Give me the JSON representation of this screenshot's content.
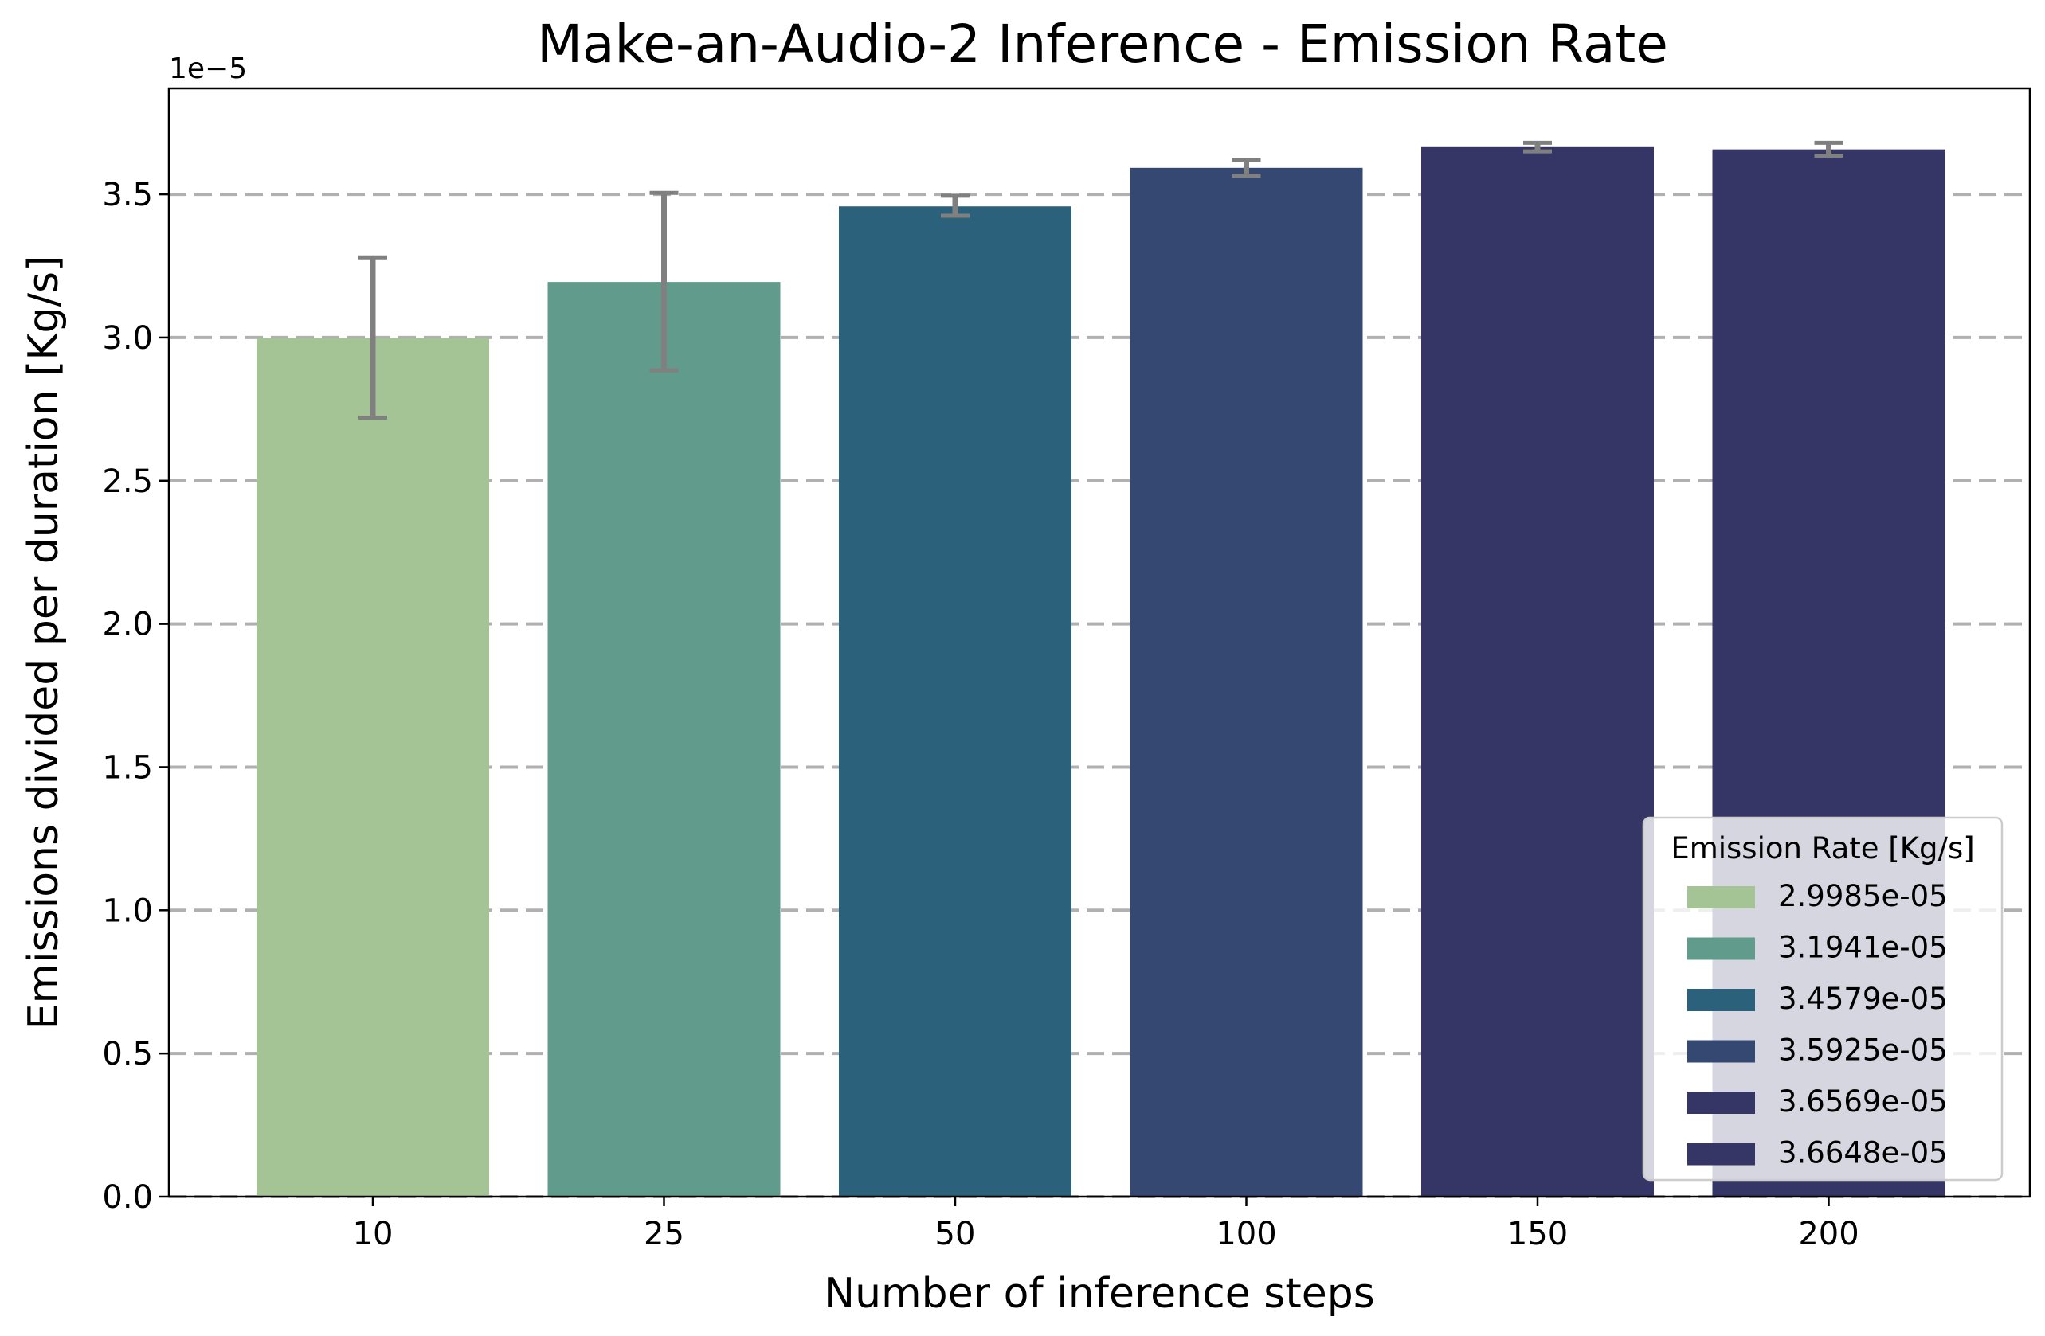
{
  "chart_data": {
    "type": "bar",
    "title": "Make-an-Audio-2 Inference - Emission Rate",
    "xlabel": "Number of inference steps",
    "ylabel": "Emissions divided per duration [Kg/s]",
    "y_offset_label": "1e−5",
    "categories": [
      "10",
      "25",
      "50",
      "100",
      "150",
      "200"
    ],
    "values": [
      2.9985e-05,
      3.1941e-05,
      3.4579e-05,
      3.5925e-05,
      3.6648e-05,
      3.6569e-05
    ],
    "error_low": [
      2.72e-05,
      2.885e-05,
      3.425e-05,
      3.565e-05,
      3.65e-05,
      3.635e-05
    ],
    "error_high": [
      3.28e-05,
      3.505e-05,
      3.495e-05,
      3.62e-05,
      3.68e-05,
      3.68e-05
    ],
    "colors": [
      "#a5c496",
      "#619b8b",
      "#2b617b",
      "#344872",
      "#363666",
      "#363666"
    ],
    "error_color": "#808080",
    "ylim": [
      0,
      3.87e-05
    ],
    "y_ticks": [
      0,
      5e-06,
      1e-05,
      1.5e-05,
      2e-05,
      2.5e-05,
      3e-05,
      3.5e-05
    ],
    "y_tick_labels": [
      "0.0",
      "0.5",
      "1.0",
      "1.5",
      "2.0",
      "2.5",
      "3.0",
      "3.5"
    ],
    "grid": "y dashed",
    "legend": {
      "title": "Emission Rate [Kg/s]",
      "position": "lower-right",
      "entries": [
        {
          "label": "2.9985e-05",
          "color": "#a5c496"
        },
        {
          "label": "3.1941e-05",
          "color": "#619b8b"
        },
        {
          "label": "3.4579e-05",
          "color": "#2b617b"
        },
        {
          "label": "3.5925e-05",
          "color": "#344872"
        },
        {
          "label": "3.6569e-05",
          "color": "#363666"
        },
        {
          "label": "3.6648e-05",
          "color": "#363666"
        }
      ]
    }
  }
}
